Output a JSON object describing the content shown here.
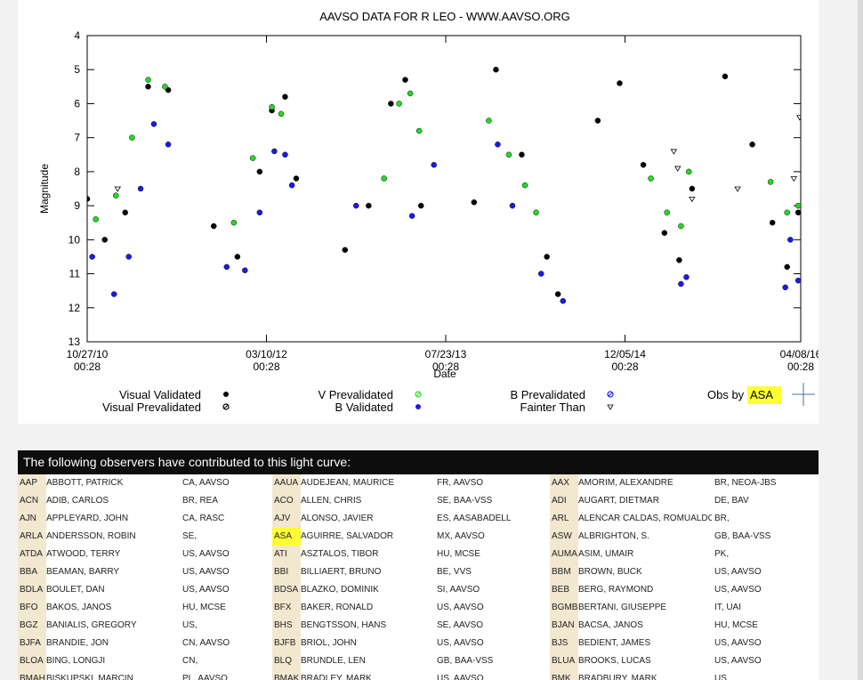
{
  "chart_data": {
    "type": "scatter",
    "title": "AAVSO DATA FOR R LEO - WWW.AAVSO.ORG",
    "xlabel": "Date",
    "ylabel": "Magnitude",
    "ylim": [
      4,
      13
    ],
    "y_inverted": true,
    "yticks": [
      "4",
      "5",
      "6",
      "7",
      "8",
      "9",
      "10",
      "11",
      "12",
      "13"
    ],
    "xticks": [
      {
        "date": "10/27/10",
        "time": "00:28"
      },
      {
        "date": "03/10/12",
        "time": "00:28"
      },
      {
        "date": "07/23/13",
        "time": "00:28"
      },
      {
        "date": "12/05/14",
        "time": "00:28"
      },
      {
        "date": "04/08/16",
        "time": "00:28"
      }
    ],
    "grid": false,
    "legend_position": "bottom",
    "legend": [
      {
        "label": "Visual Validated",
        "marker": "filled-dot",
        "color": "#000000"
      },
      {
        "label": "Visual Prevalidated",
        "marker": "hatched-dot",
        "color": "#000000"
      },
      {
        "label": "V Prevalidated",
        "marker": "hatched-dot",
        "color": "#22dd22"
      },
      {
        "label": "B Validated",
        "marker": "filled-dot",
        "color": "#1a1aee"
      },
      {
        "label": "B Prevalidated",
        "marker": "hatched-dot",
        "color": "#1a1aee"
      },
      {
        "label": "Fainter Than",
        "marker": "triangle-down",
        "color": "#000000"
      }
    ],
    "obs_by": {
      "prefix": "Obs by ",
      "code": "ASA",
      "marker": "cross",
      "color": "#4a6fa5"
    },
    "series": [
      {
        "name": "Visual Validated",
        "color": "#000000",
        "x": [
          "10/27/10",
          "12/15/10",
          "02/10/11",
          "04/15/11",
          "06/10/11",
          "10/15/11",
          "12/20/11",
          "02/20/12",
          "03/25/12",
          "05/01/12",
          "06/01/12",
          "10/15/12",
          "12/20/12",
          "02/20/13",
          "04/01/13",
          "05/15/13",
          "10/10/13",
          "12/10/13",
          "02/20/14",
          "05/01/14",
          "06/01/14",
          "09/20/14",
          "11/20/14",
          "01/25/15",
          "03/25/15",
          "05/05/15",
          "06/10/15",
          "09/10/15",
          "11/25/15",
          "01/20/16",
          "03/01/16",
          "04/01/16"
        ],
        "y": [
          8.8,
          10.0,
          9.2,
          5.5,
          5.6,
          9.6,
          10.5,
          8.0,
          6.2,
          5.8,
          8.2,
          10.3,
          9.0,
          6.0,
          5.3,
          9.0,
          8.9,
          5.0,
          7.5,
          10.5,
          11.6,
          6.5,
          5.4,
          7.8,
          9.8,
          10.6,
          8.5,
          5.2,
          7.2,
          9.5,
          10.8,
          9.2
        ]
      },
      {
        "name": "V Prevalidated",
        "color": "#22dd22",
        "x": [
          "11/20/10",
          "01/15/11",
          "03/01/11",
          "04/15/11",
          "06/01/11",
          "12/10/11",
          "02/01/12",
          "03/25/12",
          "04/20/12",
          "02/01/13",
          "03/15/13",
          "04/15/13",
          "05/10/13",
          "11/20/13",
          "01/15/14",
          "03/01/14",
          "04/01/14",
          "02/15/15",
          "04/01/15",
          "05/10/15",
          "06/01/15",
          "01/15/16",
          "03/01/16",
          "04/01/16"
        ],
        "y": [
          9.4,
          8.7,
          7.0,
          5.3,
          5.5,
          9.5,
          7.6,
          6.1,
          6.3,
          8.2,
          6.0,
          5.7,
          6.8,
          6.5,
          7.5,
          8.4,
          9.2,
          8.2,
          9.2,
          9.6,
          8.0,
          8.3,
          9.2,
          9.0
        ]
      },
      {
        "name": "B Validated",
        "color": "#1a1aee",
        "x": [
          "11/10/10",
          "01/10/11",
          "02/20/11",
          "03/25/11",
          "05/01/11",
          "06/10/11",
          "11/20/11",
          "01/10/12",
          "02/20/12",
          "04/01/12",
          "05/01/12",
          "05/20/12",
          "11/15/12",
          "04/20/13",
          "06/20/13",
          "12/15/13",
          "01/25/14",
          "04/15/14",
          "06/15/14",
          "05/10/15",
          "05/25/15",
          "02/25/16",
          "03/10/16",
          "04/01/16"
        ],
        "y": [
          10.5,
          11.6,
          10.5,
          8.5,
          6.6,
          7.2,
          10.8,
          10.9,
          9.2,
          7.4,
          7.5,
          8.4,
          9.0,
          9.3,
          7.8,
          7.2,
          9.0,
          11.0,
          11.8,
          11.3,
          11.1,
          11.4,
          10.0,
          11.2
        ]
      },
      {
        "name": "Fainter Than",
        "color": "#000000",
        "x": [
          "01/20/11",
          "04/20/15",
          "05/01/15",
          "06/10/15",
          "10/15/15",
          "03/20/16",
          "04/05/16"
        ],
        "y": [
          8.5,
          7.4,
          7.9,
          8.8,
          8.5,
          8.2,
          6.4
        ]
      }
    ]
  },
  "observers": {
    "header": "The following observers have contributed to this light curve:",
    "highlight_code": "ASA",
    "rows": [
      [
        [
          "AAP",
          "ABBOTT, PATRICK",
          "CA, AAVSO"
        ],
        [
          "AAUA",
          "AUDEJEAN, MAURICE",
          "FR, AAVSO"
        ],
        [
          "AAX",
          "AMORIM, ALEXANDRE",
          "BR, NEOA-JBS"
        ]
      ],
      [
        [
          "ACN",
          "ADIB, CARLOS",
          "BR, REA"
        ],
        [
          "ACO",
          "ALLEN, CHRIS",
          "SE, BAA-VSS"
        ],
        [
          "ADI",
          "AUGART, DIETMAR",
          "DE, BAV"
        ]
      ],
      [
        [
          "AJN",
          "APPLEYARD, JOHN",
          "CA, RASC"
        ],
        [
          "AJV",
          "ALONSO, JAVIER",
          "ES, AASABADELL"
        ],
        [
          "ARL",
          "ALENCAR CALDAS, ROMUALDO",
          "BR,"
        ]
      ],
      [
        [
          "ARLA",
          "ANDERSSON, ROBIN",
          "SE,"
        ],
        [
          "ASA",
          "AGUIRRE, SALVADOR",
          "MX, AAVSO"
        ],
        [
          "ASW",
          "ALBRIGHTON, S.",
          "GB, BAA-VSS"
        ]
      ],
      [
        [
          "ATDA",
          "ATWOOD, TERRY",
          "US, AAVSO"
        ],
        [
          "ATI",
          "ASZTALOS, TIBOR",
          "HU, MCSE"
        ],
        [
          "AUMA",
          "ASIM, UMAIR",
          "PK,"
        ]
      ],
      [
        [
          "BBA",
          "BEAMAN, BARRY",
          "US, AAVSO"
        ],
        [
          "BBI",
          "BILLIAERT, BRUNO",
          "BE, VVS"
        ],
        [
          "BBM",
          "BROWN, BUCK",
          "US, AAVSO"
        ]
      ],
      [
        [
          "BDLA",
          "BOULET, DAN",
          "US, AAVSO"
        ],
        [
          "BDSA",
          "BLAZKO, DOMINIK",
          "SI, AAVSO"
        ],
        [
          "BEB",
          "BERG, RAYMOND",
          "US, AAVSO"
        ]
      ],
      [
        [
          "BFO",
          "BAKOS, JANOS",
          "HU, MCSE"
        ],
        [
          "BFX",
          "BAKER, RONALD",
          "US, AAVSO"
        ],
        [
          "BGMB",
          "BERTANI, GIUSEPPE",
          "IT, UAI"
        ]
      ],
      [
        [
          "BGZ",
          "BANIALIS, GREGORY",
          "US,"
        ],
        [
          "BHS",
          "BENGTSSON, HANS",
          "SE, AAVSO"
        ],
        [
          "BJAN",
          "BACSA, JANOS",
          "HU, MCSE"
        ]
      ],
      [
        [
          "BJFA",
          "BRANDIE, JON",
          "CN, AAVSO"
        ],
        [
          "BJFB",
          "BRIOL, JOHN",
          "US, AAVSO"
        ],
        [
          "BJS",
          "BEDIENT, JAMES",
          "US, AAVSO"
        ]
      ],
      [
        [
          "BLOA",
          "BING, LONGJI",
          "CN,"
        ],
        [
          "BLQ",
          "BRUNDLE, LEN",
          "GB, BAA-VSS"
        ],
        [
          "BLUA",
          "BROOKS, LUCAS",
          "US, AAVSO"
        ]
      ],
      [
        [
          "BMAH",
          "BISKUPSKI, MARCIN",
          "PL, AAVSO"
        ],
        [
          "BMAK",
          "BRADLEY, MARK",
          "US, AAVSO"
        ],
        [
          "BMK",
          "BRADBURY, MARK",
          "US,"
        ]
      ]
    ]
  }
}
